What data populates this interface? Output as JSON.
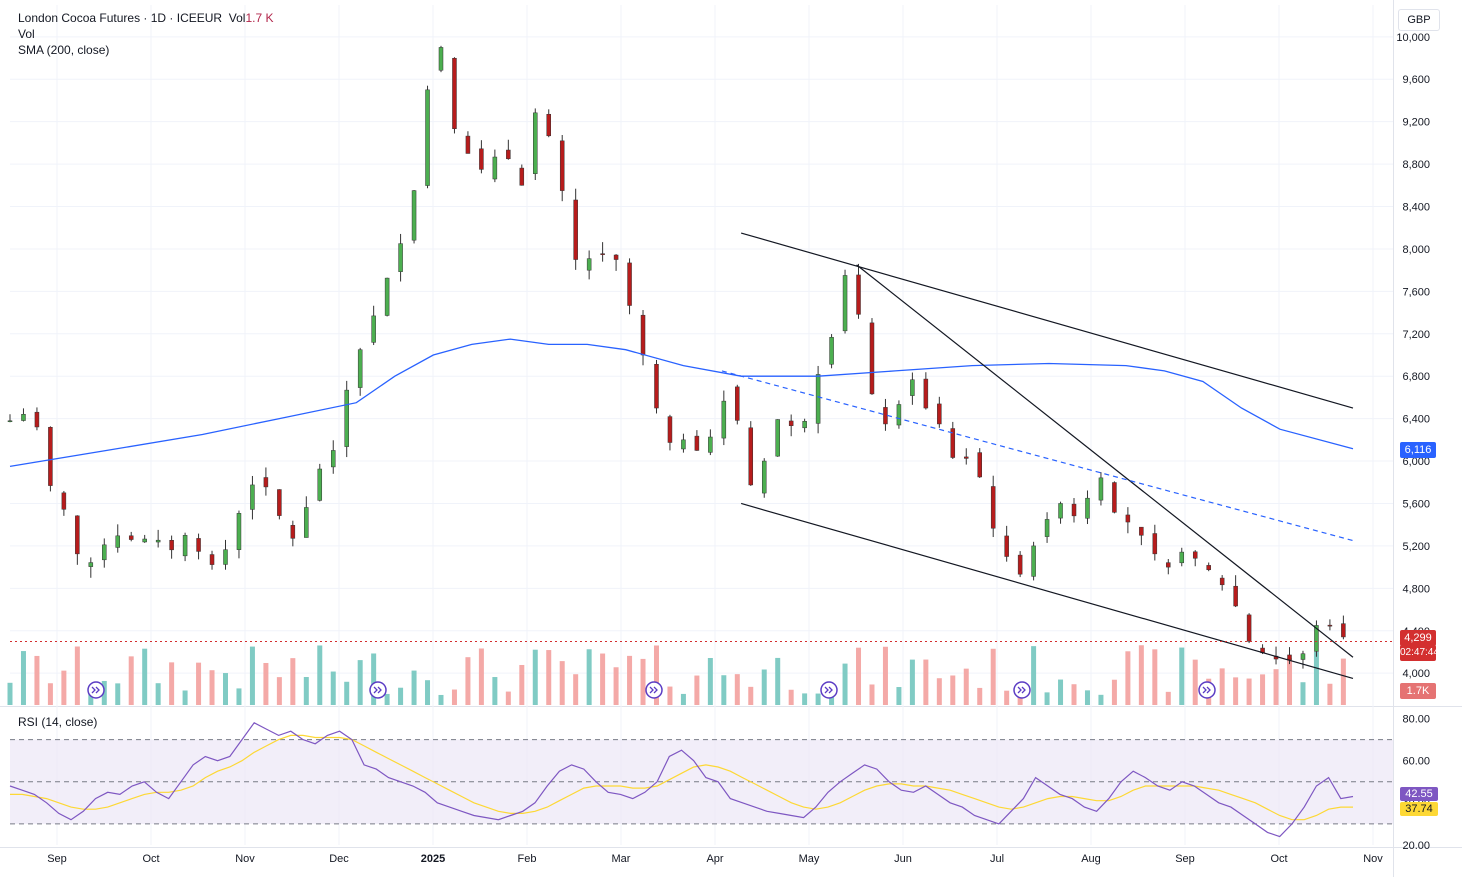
{
  "header": {
    "symbol_line": "London Cocoa Futures · 1D · ICEEUR",
    "vol_prefix": "Vol",
    "vol_value": "1.7 K",
    "vol_indicator": "Vol",
    "sma_indicator": "SMA (200, close)",
    "rsi_indicator": "RSI (14, close)"
  },
  "currency": "GBP",
  "price_badges": {
    "last_price": "4,299",
    "countdown": "02:47:44",
    "sma_value": "6,116",
    "volume": "1.7K"
  },
  "rsi_badges": {
    "rsi": "42.55",
    "rsi_ma": "37.74"
  },
  "colors": {
    "up": "#26a69a",
    "down": "#ef5350",
    "up_body": "#4caf50",
    "down_body": "#b71c1c",
    "sma": "#2962ff",
    "rsi": "#7e57c2",
    "rsi_ma": "#fdd835",
    "last_price": "#d32f2f"
  },
  "icons": [
    "news-icon"
  ],
  "chart_data": [
    {
      "type": "candlestick",
      "y_axis": {
        "ticks": [
          "10,000",
          "9,600",
          "9,200",
          "8,800",
          "8,400",
          "8,000",
          "7,600",
          "7,200",
          "6,800",
          "6,400",
          "6,000",
          "5,600",
          "5,200",
          "4,800",
          "4,400",
          "4,000"
        ],
        "range": [
          3700,
          10300
        ]
      },
      "x_axis": {
        "ticks": [
          "Sep",
          "Oct",
          "Nov",
          "Dec",
          "2025",
          "Feb",
          "Mar",
          "Apr",
          "May",
          "Jun",
          "Jul",
          "Aug",
          "Sep",
          "Oct",
          "Nov"
        ]
      },
      "close_path": [
        [
          0,
          6380
        ],
        [
          8,
          6450
        ],
        [
          15,
          6300
        ],
        [
          22,
          5680
        ],
        [
          30,
          5500
        ],
        [
          38,
          4900
        ],
        [
          45,
          5150
        ],
        [
          55,
          5300
        ],
        [
          65,
          5250
        ],
        [
          75,
          5280
        ],
        [
          85,
          5150
        ],
        [
          95,
          5400
        ],
        [
          100,
          4980
        ],
        [
          108,
          5050
        ],
        [
          115,
          5250
        ],
        [
          122,
          5700
        ],
        [
          130,
          5850
        ],
        [
          138,
          5600
        ],
        [
          145,
          5200
        ],
        [
          152,
          5450
        ],
        [
          160,
          5900
        ],
        [
          168,
          6100
        ],
        [
          176,
          6750
        ],
        [
          184,
          7150
        ],
        [
          192,
          7500
        ],
        [
          200,
          7950
        ],
        [
          206,
          8150
        ],
        [
          212,
          8750
        ],
        [
          218,
          9650
        ],
        [
          224,
          9900
        ],
        [
          230,
          9200
        ],
        [
          236,
          8800
        ],
        [
          242,
          9100
        ],
        [
          248,
          8400
        ],
        [
          254,
          9100
        ],
        [
          260,
          8800
        ],
        [
          266,
          8600
        ],
        [
          272,
          9300
        ],
        [
          278,
          9200
        ],
        [
          284,
          8800
        ],
        [
          290,
          8300
        ],
        [
          296,
          7700
        ],
        [
          302,
          7950
        ],
        [
          308,
          7950
        ],
        [
          314,
          7950
        ],
        [
          320,
          7650
        ],
        [
          326,
          7100
        ],
        [
          332,
          6900
        ],
        [
          338,
          6300
        ],
        [
          344,
          6150
        ],
        [
          350,
          6200
        ],
        [
          356,
          6080
        ],
        [
          362,
          6200
        ],
        [
          368,
          6280
        ],
        [
          374,
          6850
        ],
        [
          380,
          6150
        ],
        [
          386,
          5700
        ],
        [
          392,
          6000
        ],
        [
          398,
          6400
        ],
        [
          404,
          6350
        ],
        [
          410,
          6300
        ],
        [
          416,
          6450
        ],
        [
          422,
          7000
        ],
        [
          428,
          7200
        ],
        [
          434,
          7750
        ],
        [
          440,
          7500
        ],
        [
          446,
          6800
        ],
        [
          452,
          6300
        ],
        [
          458,
          6400
        ],
        [
          464,
          6600
        ],
        [
          470,
          6800
        ],
        [
          476,
          6500
        ],
        [
          482,
          6400
        ],
        [
          488,
          6100
        ],
        [
          494,
          5900
        ],
        [
          500,
          6150
        ],
        [
          506,
          5700
        ],
        [
          512,
          5300
        ],
        [
          518,
          5100
        ],
        [
          524,
          4900
        ],
        [
          530,
          5100
        ],
        [
          536,
          5400
        ],
        [
          542,
          5500
        ],
        [
          548,
          5650
        ],
        [
          554,
          5450
        ],
        [
          560,
          5650
        ],
        [
          566,
          5900
        ],
        [
          572,
          5550
        ],
        [
          578,
          5450
        ],
        [
          584,
          5400
        ],
        [
          590,
          5250
        ],
        [
          596,
          5100
        ],
        [
          602,
          5000
        ],
        [
          608,
          5150
        ],
        [
          614,
          5100
        ],
        [
          620,
          5050
        ],
        [
          626,
          4900
        ],
        [
          632,
          4800
        ],
        [
          638,
          4600
        ],
        [
          644,
          4300
        ],
        [
          650,
          4200
        ],
        [
          656,
          4150
        ],
        [
          662,
          4100
        ],
        [
          668,
          4150
        ],
        [
          674,
          4200
        ],
        [
          680,
          4500
        ],
        [
          686,
          4450
        ],
        [
          692,
          4350
        ],
        [
          698,
          4300
        ]
      ],
      "sma_200": [
        [
          0,
          5950
        ],
        [
          50,
          6100
        ],
        [
          100,
          6250
        ],
        [
          140,
          6400
        ],
        [
          180,
          6550
        ],
        [
          200,
          6800
        ],
        [
          220,
          7000
        ],
        [
          240,
          7100
        ],
        [
          260,
          7150
        ],
        [
          280,
          7100
        ],
        [
          300,
          7100
        ],
        [
          320,
          7050
        ],
        [
          350,
          6900
        ],
        [
          380,
          6800
        ],
        [
          420,
          6800
        ],
        [
          460,
          6850
        ],
        [
          500,
          6900
        ],
        [
          540,
          6920
        ],
        [
          580,
          6900
        ],
        [
          600,
          6850
        ],
        [
          620,
          6750
        ],
        [
          640,
          6500
        ],
        [
          660,
          6300
        ],
        [
          698,
          6116
        ]
      ],
      "volume": {
        "label": "1.7K"
      },
      "last_price": 4299,
      "trendlines": [
        {
          "style": "solid",
          "points": [
            [
              380,
              8150
            ],
            [
              698,
              6500
            ]
          ]
        },
        {
          "style": "solid",
          "points": [
            [
              380,
              5600
            ],
            [
              698,
              3950
            ]
          ]
        },
        {
          "style": "solid",
          "points": [
            [
              440,
              7850
            ],
            [
              698,
              4150
            ]
          ]
        },
        {
          "style": "dashed",
          "points": [
            [
              370,
              6850
            ],
            [
              698,
              5250
            ]
          ]
        }
      ]
    },
    {
      "type": "line",
      "title": "RSI (14, close)",
      "y_axis": {
        "ticks": [
          "80.00",
          "60.00",
          "40.00",
          "20.00"
        ],
        "range": [
          20,
          85
        ]
      },
      "bands": [
        30,
        50,
        70
      ],
      "series": [
        {
          "name": "RSI",
          "values": [
            48,
            46,
            44,
            40,
            35,
            32,
            36,
            42,
            45,
            44,
            48,
            50,
            45,
            42,
            50,
            58,
            62,
            60,
            62,
            70,
            78,
            75,
            72,
            74,
            70,
            68,
            72,
            74,
            70,
            58,
            56,
            52,
            50,
            48,
            45,
            40,
            38,
            36,
            34,
            33,
            32,
            34,
            36,
            40,
            48,
            55,
            58,
            56,
            50,
            45,
            44,
            42,
            45,
            50,
            62,
            65,
            60,
            52,
            50,
            42,
            40,
            38,
            36,
            35,
            34,
            33,
            38,
            45,
            50,
            54,
            58,
            56,
            50,
            46,
            45,
            48,
            44,
            40,
            38,
            34,
            32,
            30,
            36,
            42,
            52,
            48,
            44,
            42,
            38,
            36,
            42,
            50,
            55,
            52,
            48,
            46,
            50,
            48,
            44,
            40,
            38,
            34,
            30,
            26,
            24,
            30,
            38,
            48,
            52,
            42,
            43
          ]
        },
        {
          "name": "RSI-based MA",
          "values": [
            44,
            44,
            43,
            42,
            40,
            38,
            37,
            37,
            38,
            40,
            42,
            44,
            45,
            45,
            46,
            48,
            52,
            55,
            57,
            60,
            64,
            67,
            70,
            72,
            72,
            71,
            71,
            71,
            70,
            67,
            64,
            61,
            58,
            55,
            52,
            49,
            46,
            43,
            40,
            38,
            36,
            35,
            35,
            36,
            38,
            41,
            44,
            47,
            48,
            48,
            48,
            47,
            47,
            48,
            51,
            54,
            57,
            58,
            57,
            55,
            52,
            49,
            46,
            43,
            40,
            38,
            37,
            38,
            40,
            43,
            46,
            48,
            49,
            49,
            48,
            48,
            47,
            46,
            44,
            42,
            40,
            38,
            37,
            38,
            40,
            42,
            43,
            43,
            42,
            41,
            41,
            43,
            46,
            48,
            48,
            48,
            48,
            48,
            47,
            46,
            44,
            42,
            40,
            37,
            34,
            32,
            32,
            34,
            37,
            38,
            38
          ]
        }
      ]
    }
  ]
}
